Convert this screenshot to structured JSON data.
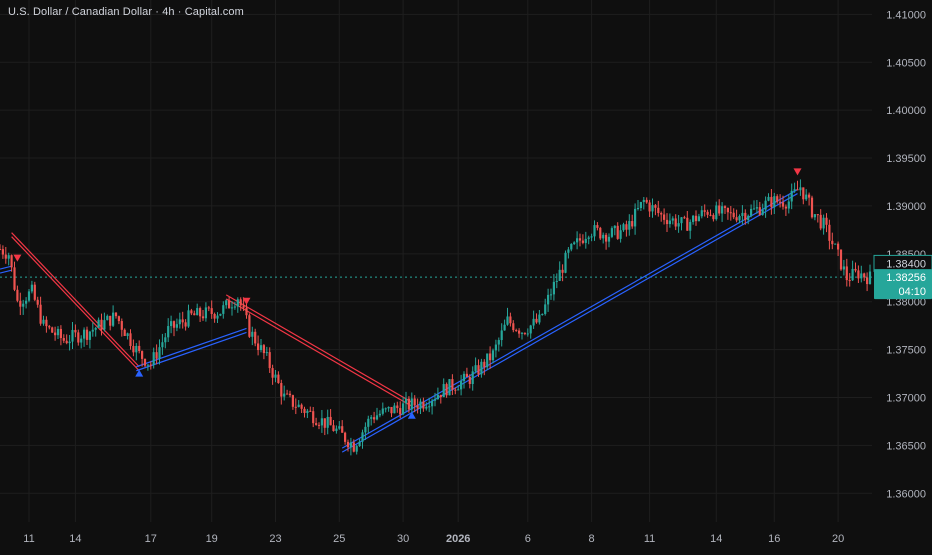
{
  "chart_data": {
    "type": "candlestick",
    "title": "U.S. Dollar / Canadian Dollar · 4h · Capital.com",
    "timeframe": "4h",
    "y_range": [
      1.357,
      1.4115
    ],
    "y_ticks": [
      1.41,
      1.405,
      1.4,
      1.395,
      1.39,
      1.385,
      1.38,
      1.375,
      1.37,
      1.365,
      1.36
    ],
    "y_tick_labels": [
      "1.41000",
      "1.40500",
      "1.40000",
      "1.39500",
      "1.39000",
      "1.38500",
      "1.38000",
      "1.37500",
      "1.37000",
      "1.36500",
      "1.36000"
    ],
    "x_tick_labels": [
      {
        "i": 10,
        "label": "11"
      },
      {
        "i": 26,
        "label": "14"
      },
      {
        "i": 52,
        "label": "17"
      },
      {
        "i": 73,
        "label": "19"
      },
      {
        "i": 95,
        "label": "23"
      },
      {
        "i": 117,
        "label": "25"
      },
      {
        "i": 139,
        "label": "30"
      },
      {
        "i": 158,
        "label": "2026",
        "bold": true
      },
      {
        "i": 182,
        "label": "6"
      },
      {
        "i": 204,
        "label": "8"
      },
      {
        "i": 224,
        "label": "11"
      },
      {
        "i": 247,
        "label": "14"
      },
      {
        "i": 267,
        "label": "16"
      },
      {
        "i": 289,
        "label": "20"
      }
    ],
    "grid": true,
    "last_price": {
      "price": 1.38256,
      "label": "1.38256",
      "countdown": "04:10",
      "color": "#26a69a"
    },
    "prev_price": {
      "price": 1.384,
      "label": "1.38400"
    },
    "colors": {
      "up": "#26a69a",
      "down": "#ef5350",
      "background": "#0f0f0f",
      "grid": "#1e1e1e",
      "support": "#2962ff",
      "resistance": "#f23645"
    },
    "knots": [
      [
        0,
        1.3855
      ],
      [
        3,
        1.385
      ],
      [
        6,
        1.38
      ],
      [
        11,
        1.381
      ],
      [
        15,
        1.3775
      ],
      [
        22,
        1.376
      ],
      [
        30,
        1.3768
      ],
      [
        40,
        1.3785
      ],
      [
        48,
        1.3745
      ],
      [
        52,
        1.3735
      ],
      [
        58,
        1.377
      ],
      [
        66,
        1.3785
      ],
      [
        76,
        1.379
      ],
      [
        82,
        1.3805
      ],
      [
        86,
        1.377
      ],
      [
        92,
        1.374
      ],
      [
        98,
        1.37
      ],
      [
        106,
        1.3685
      ],
      [
        115,
        1.3668
      ],
      [
        122,
        1.365
      ],
      [
        128,
        1.368
      ],
      [
        138,
        1.369
      ],
      [
        146,
        1.3695
      ],
      [
        154,
        1.371
      ],
      [
        162,
        1.372
      ],
      [
        170,
        1.3745
      ],
      [
        175,
        1.378
      ],
      [
        180,
        1.377
      ],
      [
        186,
        1.378
      ],
      [
        190,
        1.381
      ],
      [
        196,
        1.385
      ],
      [
        203,
        1.3875
      ],
      [
        210,
        1.387
      ],
      [
        216,
        1.3875
      ],
      [
        222,
        1.3905
      ],
      [
        228,
        1.389
      ],
      [
        236,
        1.388
      ],
      [
        244,
        1.3895
      ],
      [
        252,
        1.389
      ],
      [
        260,
        1.3895
      ],
      [
        266,
        1.3905
      ],
      [
        272,
        1.3905
      ],
      [
        276,
        1.392
      ],
      [
        280,
        1.3895
      ],
      [
        284,
        1.388
      ],
      [
        288,
        1.3855
      ],
      [
        292,
        1.3825
      ],
      [
        296,
        1.383
      ],
      [
        300,
        1.3825
      ]
    ],
    "resistance_lines": [
      {
        "from": {
          "i": 4,
          "price": 1.387
        },
        "to": {
          "i": 48,
          "price": 1.373
        }
      },
      {
        "from": {
          "i": 78,
          "price": 1.3805
        },
        "to": {
          "i": 142,
          "price": 1.3693
        }
      }
    ],
    "support_lines": [
      {
        "from": {
          "i": 0,
          "price": 1.3832
        },
        "to": {
          "i": 4,
          "price": 1.3835
        }
      },
      {
        "from": {
          "i": 47,
          "price": 1.373
        },
        "to": {
          "i": 85,
          "price": 1.377
        }
      },
      {
        "from": {
          "i": 118,
          "price": 1.3645
        },
        "to": {
          "i": 275,
          "price": 1.3915
        }
      }
    ],
    "sell_signals": [
      {
        "i": 6,
        "price": 1.3845
      },
      {
        "i": 85,
        "price": 1.38
      },
      {
        "i": 275,
        "price": 1.3935
      }
    ],
    "buy_signals": [
      {
        "i": 48,
        "price": 1.3726
      },
      {
        "i": 142,
        "price": 1.3682
      }
    ]
  }
}
